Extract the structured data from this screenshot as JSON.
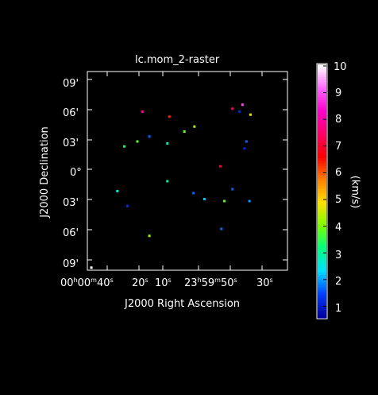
{
  "window": {
    "title": "lc.mom_2-raster"
  },
  "axes": {
    "xlabel": "J2000 Right Ascension",
    "ylabel": "J2000 Declination",
    "y_ticks": [
      "09'",
      "06'",
      "03'",
      "0°",
      "03'",
      "06'",
      "09'"
    ],
    "x_ticks": [
      {
        "main": "00",
        "h": "h",
        "m": "00",
        "mm": "m",
        "s": "40",
        "ss": "s"
      },
      {
        "main": "20",
        "ss": "s"
      },
      {
        "main": "10",
        "ss": "s"
      },
      {
        "main": "23",
        "h": "h",
        "m": "59",
        "mm": "m",
        "s": "50",
        "ss": "s"
      },
      {
        "main": "30",
        "ss": "s"
      }
    ]
  },
  "colorbar": {
    "label": "(km/s)",
    "ticks": [
      "10",
      "9",
      "8",
      "7",
      "6",
      "5",
      "4",
      "3",
      "2",
      "1"
    ],
    "colors": [
      "#ffffff",
      "#ff66ff",
      "#ff00cc",
      "#ff0066",
      "#ff0000",
      "#ff8000",
      "#ffe000",
      "#80ff00",
      "#00ff80",
      "#00e0ff",
      "#0040ff",
      "#0000a0"
    ]
  },
  "chart_data": {
    "type": "heatmap",
    "title": "lc.mom_2-raster",
    "xlabel": "J2000 Right Ascension",
    "ylabel": "J2000 Declination",
    "colorbar_label": "(km/s)",
    "colorbar_range": [
      1,
      10
    ],
    "grid": false,
    "blobs": [
      {
        "dx": -0.45,
        "dy": 0.6,
        "v": 8.0
      },
      {
        "dx": -0.18,
        "dy": 0.55,
        "v": 6.5
      },
      {
        "dx": 0.07,
        "dy": 0.45,
        "v": 4.5
      },
      {
        "dx": 0.45,
        "dy": 0.63,
        "v": 7.5
      },
      {
        "dx": 0.52,
        "dy": 0.6,
        "v": 1.5
      },
      {
        "dx": 0.55,
        "dy": 0.67,
        "v": 9.0
      },
      {
        "dx": 0.63,
        "dy": 0.57,
        "v": 5.0
      },
      {
        "dx": -0.2,
        "dy": 0.28,
        "v": 3.0
      },
      {
        "dx": -0.5,
        "dy": 0.3,
        "v": 4.0
      },
      {
        "dx": -0.38,
        "dy": 0.35,
        "v": 2.0
      },
      {
        "dx": -0.63,
        "dy": 0.25,
        "v": 3.5
      },
      {
        "dx": 0.59,
        "dy": 0.3,
        "v": 2.0
      },
      {
        "dx": 0.57,
        "dy": 0.23,
        "v": 1.5
      },
      {
        "dx": 0.33,
        "dy": 0.05,
        "v": 7.0
      },
      {
        "dx": -0.03,
        "dy": 0.4,
        "v": 4.2
      },
      {
        "dx": -0.7,
        "dy": -0.2,
        "v": 2.8
      },
      {
        "dx": -0.6,
        "dy": -0.35,
        "v": 1.6
      },
      {
        "dx": -0.2,
        "dy": -0.1,
        "v": 3.2
      },
      {
        "dx": 0.06,
        "dy": -0.22,
        "v": 2.0
      },
      {
        "dx": 0.17,
        "dy": -0.28,
        "v": 2.5
      },
      {
        "dx": 0.37,
        "dy": -0.3,
        "v": 4.0
      },
      {
        "dx": 0.45,
        "dy": -0.18,
        "v": 2.0
      },
      {
        "dx": 0.62,
        "dy": -0.3,
        "v": 2.3
      },
      {
        "dx": -0.38,
        "dy": -0.65,
        "v": 4.5
      },
      {
        "dx": 0.34,
        "dy": -0.58,
        "v": 2.1
      },
      {
        "dx": -0.96,
        "dy": -0.97,
        "v": 10.0
      }
    ]
  }
}
